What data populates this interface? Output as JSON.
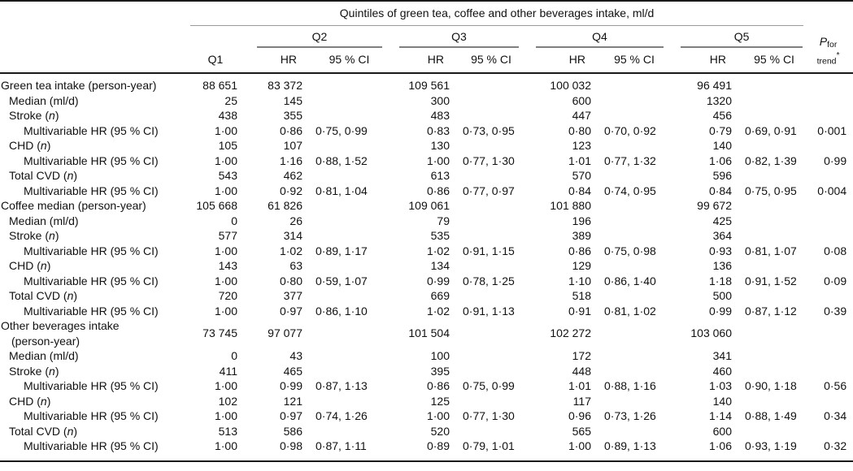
{
  "table": {
    "spanning_header": "Quintiles of green tea, coffee and other beverages intake, ml/d",
    "group_headers": [
      "Q2",
      "Q3",
      "Q4",
      "Q5"
    ],
    "q1_header": "Q1",
    "sub_headers": {
      "hr": "HR",
      "ci": "95 % CI"
    },
    "p_header": {
      "p": "P",
      "sub_for": "for",
      "sub_trend": "trend",
      "star": "*"
    },
    "rows": [
      {
        "label": "Green tea intake (person-year)",
        "indent": 0,
        "cells": [
          "88 651",
          "83 372",
          "",
          "109 561",
          "",
          "100 032",
          "",
          "96 491",
          "",
          ""
        ]
      },
      {
        "label": "Median (ml/d)",
        "indent": 1,
        "cells": [
          "25",
          "145",
          "",
          "300",
          "",
          "600",
          "",
          "1320",
          "",
          ""
        ]
      },
      {
        "label": "Stroke (n)",
        "indent": 1,
        "cells": [
          "438",
          "355",
          "",
          "483",
          "",
          "447",
          "",
          "456",
          "",
          ""
        ]
      },
      {
        "label": "Multivariable HR (95 % CI)",
        "indent": 2,
        "cells": [
          "1·00",
          "0·86",
          "0·75, 0·99",
          "0·83",
          "0·73, 0·95",
          "0·80",
          "0·70, 0·92",
          "0·79",
          "0·69, 0·91",
          "0·001"
        ]
      },
      {
        "label": "CHD (n)",
        "indent": 1,
        "cells": [
          "105",
          "107",
          "",
          "130",
          "",
          "123",
          "",
          "140",
          "",
          ""
        ]
      },
      {
        "label": "Multivariable HR (95 % CI)",
        "indent": 2,
        "cells": [
          "1·00",
          "1·16",
          "0·88, 1·52",
          "1·00",
          "0·77, 1·30",
          "1·01",
          "0·77, 1·32",
          "1·06",
          "0·82, 1·39",
          "0·99"
        ]
      },
      {
        "label": "Total CVD (n)",
        "indent": 1,
        "cells": [
          "543",
          "462",
          "",
          "613",
          "",
          "570",
          "",
          "596",
          "",
          ""
        ]
      },
      {
        "label": "Multivariable HR (95 % CI)",
        "indent": 2,
        "cells": [
          "1·00",
          "0·92",
          "0·81, 1·04",
          "0·86",
          "0·77, 0·97",
          "0·84",
          "0·74, 0·95",
          "0·84",
          "0·75, 0·95",
          "0·004"
        ]
      },
      {
        "label": "Coffee median (person-year)",
        "indent": 0,
        "cells": [
          "105 668",
          "61 826",
          "",
          "109 061",
          "",
          "101 880",
          "",
          "99 672",
          "",
          ""
        ]
      },
      {
        "label": "Median (ml/d)",
        "indent": 1,
        "cells": [
          "0",
          "26",
          "",
          "79",
          "",
          "196",
          "",
          "425",
          "",
          ""
        ]
      },
      {
        "label": "Stroke (n)",
        "indent": 1,
        "cells": [
          "577",
          "314",
          "",
          "535",
          "",
          "389",
          "",
          "364",
          "",
          ""
        ]
      },
      {
        "label": "Multivariable HR (95 % CI)",
        "indent": 2,
        "cells": [
          "1·00",
          "1·02",
          "0·89, 1·17",
          "1·02",
          "0·91, 1·15",
          "0·86",
          "0·75, 0·98",
          "0·93",
          "0·81, 1·07",
          "0·08"
        ]
      },
      {
        "label": "CHD (n)",
        "indent": 1,
        "cells": [
          "143",
          "63",
          "",
          "134",
          "",
          "129",
          "",
          "136",
          "",
          ""
        ]
      },
      {
        "label": "Multivariable HR (95 % CI)",
        "indent": 2,
        "cells": [
          "1·00",
          "0·80",
          "0·59, 1·07",
          "0·99",
          "0·78, 1·25",
          "1·10",
          "0·86, 1·40",
          "1·18",
          "0·91, 1·52",
          "0·09"
        ]
      },
      {
        "label": "Total CVD (n)",
        "indent": 1,
        "cells": [
          "720",
          "377",
          "",
          "669",
          "",
          "518",
          "",
          "500",
          "",
          ""
        ]
      },
      {
        "label": "Multivariable HR (95 % CI)",
        "indent": 2,
        "cells": [
          "1·00",
          "0·97",
          "0·86, 1·10",
          "1·02",
          "0·91, 1·13",
          "0·91",
          "0·81, 1·02",
          "0·99",
          "0·87, 1·12",
          "0·39"
        ]
      },
      {
        "label": "Other beverages intake",
        "label2": "(person-year)",
        "indent": 0,
        "cells": [
          "73 745",
          "97 077",
          "",
          "101 504",
          "",
          "102 272",
          "",
          "103 060",
          "",
          ""
        ]
      },
      {
        "label": "Median (ml/d)",
        "indent": 1,
        "cells": [
          "0",
          "43",
          "",
          "100",
          "",
          "172",
          "",
          "341",
          "",
          ""
        ]
      },
      {
        "label": "Stroke (n)",
        "indent": 1,
        "cells": [
          "411",
          "465",
          "",
          "395",
          "",
          "448",
          "",
          "460",
          "",
          ""
        ]
      },
      {
        "label": "Multivariable HR (95 % CI)",
        "indent": 2,
        "cells": [
          "1·00",
          "0·99",
          "0·87, 1·13",
          "0·86",
          "0·75, 0·99",
          "1·01",
          "0·88, 1·16",
          "1·03",
          "0·90, 1·18",
          "0·56"
        ]
      },
      {
        "label": "CHD (n)",
        "indent": 1,
        "cells": [
          "102",
          "121",
          "",
          "125",
          "",
          "117",
          "",
          "140",
          "",
          ""
        ]
      },
      {
        "label": "Multivariable HR (95 % CI)",
        "indent": 2,
        "cells": [
          "1·00",
          "0·97",
          "0·74, 1·26",
          "1·00",
          "0·77, 1·30",
          "0·96",
          "0·73, 1·26",
          "1·14",
          "0·88, 1·49",
          "0·34"
        ]
      },
      {
        "label": "Total CVD (n)",
        "indent": 1,
        "cells": [
          "513",
          "586",
          "",
          "520",
          "",
          "565",
          "",
          "600",
          "",
          ""
        ]
      },
      {
        "label": "Multivariable HR (95 % CI)",
        "indent": 2,
        "cells": [
          "1·00",
          "0·98",
          "0·87, 1·11",
          "0·89",
          "0·79, 1·01",
          "1·00",
          "0·89, 1·13",
          "1·06",
          "0·93, 1·19",
          "0·32"
        ]
      }
    ]
  }
}
